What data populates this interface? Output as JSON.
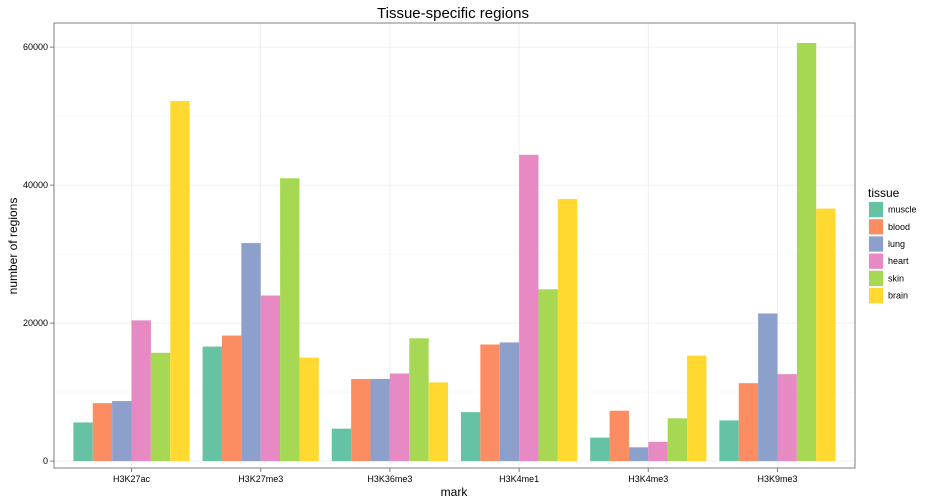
{
  "chart_data": {
    "type": "bar",
    "title": "Tissue-specific regions",
    "xlabel": "mark",
    "ylabel": "number of regions",
    "ylim": [
      -1000,
      63500
    ],
    "yticks": [
      0,
      20000,
      40000,
      60000
    ],
    "grid": true,
    "legend": {
      "title": "tissue",
      "position": "right"
    },
    "categories": [
      "H3K27ac",
      "H3K27me3",
      "H3K36me3",
      "H3K4me1",
      "H3K4me3",
      "H3K9me3"
    ],
    "series": [
      {
        "name": "muscle",
        "color": "#66c2a5",
        "values": [
          5600,
          16600,
          4700,
          7100,
          3400,
          5900
        ]
      },
      {
        "name": "blood",
        "color": "#fc8d62",
        "values": [
          8400,
          18200,
          11900,
          16900,
          7300,
          11300
        ]
      },
      {
        "name": "lung",
        "color": "#8da0cb",
        "values": [
          8700,
          31600,
          11900,
          17200,
          2000,
          21400
        ]
      },
      {
        "name": "heart",
        "color": "#e78ac3",
        "values": [
          20400,
          24000,
          12700,
          44400,
          2800,
          12600
        ]
      },
      {
        "name": "skin",
        "color": "#a6d854",
        "values": [
          15700,
          41000,
          17800,
          24900,
          6200,
          60600
        ]
      },
      {
        "name": "brain",
        "color": "#ffd92f",
        "values": [
          52200,
          15000,
          11400,
          38000,
          15300,
          36600
        ]
      }
    ]
  }
}
